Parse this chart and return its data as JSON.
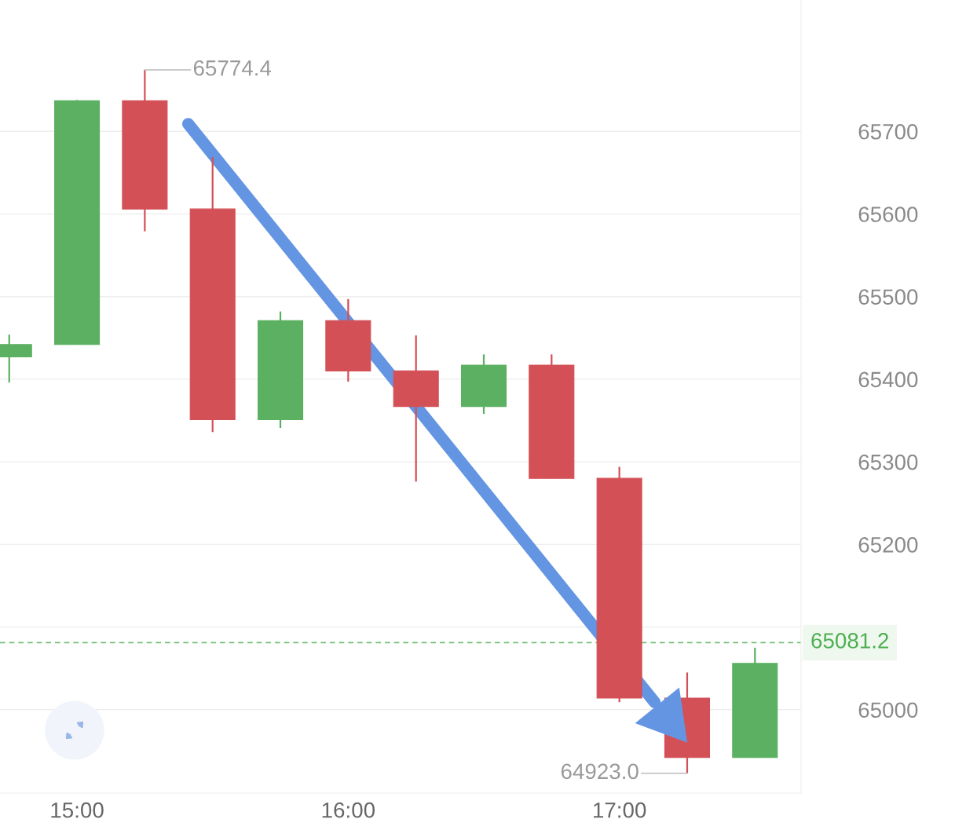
{
  "chart_data": {
    "type": "candlestick",
    "x": [
      14.75,
      15.0,
      15.25,
      15.5,
      15.75,
      16.0,
      16.25,
      16.5,
      16.75,
      17.0,
      17.25,
      17.5
    ],
    "ohlc": [
      [
        65427,
        65454,
        65396,
        65442
      ],
      [
        65442,
        65738,
        65442,
        65737
      ],
      [
        65737,
        65774.4,
        65579,
        65606
      ],
      [
        65606,
        65669,
        65336,
        65351
      ],
      [
        65351,
        65482,
        65341,
        65471
      ],
      [
        65471,
        65497,
        65397,
        65410
      ],
      [
        65410,
        65453,
        65276,
        65367
      ],
      [
        65367,
        65430,
        65358,
        65417
      ],
      [
        65417,
        65430,
        65280,
        65280
      ],
      [
        65280,
        65294,
        65009,
        65014
      ],
      [
        65014,
        65045,
        64923.0,
        64942
      ],
      [
        64942,
        65075,
        64942,
        65056
      ]
    ],
    "colors": [
      "#5cb062",
      "#5cb062",
      "#d35057",
      "#d35057",
      "#5cb062",
      "#d35057",
      "#d35057",
      "#5cb062",
      "#d35057",
      "#d35057",
      "#d35057",
      "#5cb062"
    ],
    "series": [
      {
        "type": "line",
        "x": [
          15.41,
          17.13
        ],
        "values": [
          65709,
          65009
        ],
        "color": "#6495e3"
      }
    ],
    "xlim": [
      14.716,
      17.67
    ],
    "xticks": [
      {
        "value": 15,
        "label": "15:00"
      },
      {
        "value": 16,
        "label": "16:00"
      },
      {
        "value": 17,
        "label": "17:00"
      }
    ],
    "ylim": [
      64899,
      65859
    ],
    "yticks": [
      65000,
      {
        "value": 65100,
        "label": null
      },
      65200,
      65300,
      65400,
      65500,
      65600,
      65700
    ],
    "grid": "y",
    "ref_lines": [
      {
        "axis": "y",
        "value": 65081.2,
        "label": "65081.2",
        "color": "#4caf50",
        "line_style": "dashed"
      }
    ],
    "annotations": [
      {
        "text": "65774.4",
        "x": 15.25,
        "y": 65774.4
      },
      {
        "text": "64923.0",
        "x": 17.25,
        "y": 64923.0
      }
    ]
  }
}
